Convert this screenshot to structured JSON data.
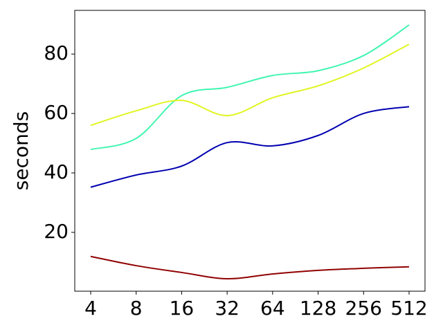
{
  "chart_data": {
    "type": "line",
    "y_label": "seconds",
    "categories": [
      "4",
      "8",
      "16",
      "32",
      "64",
      "128",
      "256",
      "512"
    ],
    "ylim": [
      0.2,
      94.7
    ],
    "yticks": [
      20,
      40,
      60,
      80
    ],
    "series": [
      {
        "color": "#0000b0",
        "values": [
          35.2,
          39.3,
          42.3,
          50.2,
          49.1,
          52.6,
          60,
          62.3
        ]
      },
      {
        "color": "#40f5b0",
        "values": [
          47.9,
          51.6,
          66,
          68.8,
          72.8,
          74.4,
          79.5,
          89.8
        ]
      },
      {
        "color": "#e0f520",
        "values": [
          56,
          60.9,
          64.4,
          59.3,
          65.3,
          69.3,
          75.3,
          83.3
        ]
      },
      {
        "color": "#900000",
        "values": [
          11.9,
          8.8,
          6.5,
          4.4,
          6,
          7.2,
          7.9,
          8.4
        ]
      }
    ]
  }
}
